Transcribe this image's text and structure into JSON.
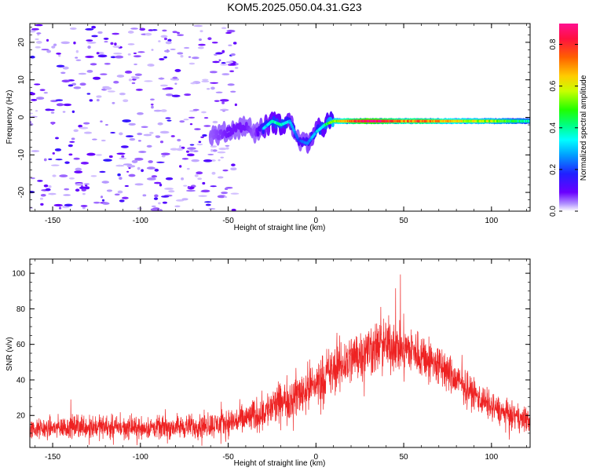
{
  "title": "KOM5.2025.050.04.31.G23",
  "colors": {
    "snr_line": "#ee2222",
    "frame": "#000000"
  },
  "chart_data": [
    {
      "type": "heatmap",
      "xlabel": "Height of straight line (km)",
      "ylabel": "Frequency (Hz)",
      "xlim": [
        -163,
        122
      ],
      "ylim": [
        -25,
        25
      ],
      "x_ticks": [
        -150,
        -100,
        -50,
        0,
        50,
        100
      ],
      "y_ticks": [
        -20,
        -10,
        0,
        10,
        20
      ],
      "colorbar": {
        "label": "Normalized spectral amplitude",
        "range": [
          0,
          0.9
        ],
        "ticks": [
          "0.0",
          "0.2",
          "0.4",
          "0.6",
          "0.8"
        ]
      },
      "ridge": {
        "description_x": [
          -60,
          -50,
          -40,
          -35,
          -30,
          -25,
          -20,
          -15,
          -10,
          -5,
          0,
          5,
          10,
          20,
          30,
          40,
          50,
          60,
          80,
          100,
          120
        ],
        "frequency_hz": [
          -5,
          -4,
          -2,
          -4,
          -3,
          -1,
          -2,
          -1,
          -6,
          -7,
          -4,
          -2,
          -1,
          -1,
          -1,
          -1,
          -1,
          -1,
          -1,
          -1,
          -1
        ],
        "amplitude": [
          0.1,
          0.15,
          0.15,
          0.1,
          0.3,
          0.35,
          0.4,
          0.3,
          0.2,
          0.25,
          0.3,
          0.4,
          0.55,
          0.75,
          0.9,
          0.8,
          0.7,
          0.75,
          0.6,
          0.55,
          0.4
        ]
      },
      "noise_region_x": [
        -163,
        -45
      ]
    },
    {
      "type": "line",
      "xlabel": "Height of straight line (km)",
      "ylabel": "SNR (v/v)",
      "xlim": [
        -163,
        122
      ],
      "ylim": [
        2,
        108
      ],
      "x_ticks": [
        -150,
        -100,
        -50,
        0,
        50,
        100
      ],
      "y_ticks": [
        20,
        40,
        60,
        80,
        100
      ],
      "envelope": {
        "x": [
          -163,
          -150,
          -130,
          -110,
          -90,
          -70,
          -55,
          -40,
          -30,
          -20,
          -10,
          0,
          10,
          20,
          30,
          40,
          50,
          60,
          70,
          80,
          90,
          100,
          110,
          122
        ],
        "mean": [
          12,
          13,
          14,
          13,
          13,
          14,
          15,
          18,
          22,
          27,
          32,
          38,
          45,
          52,
          57,
          60,
          58,
          54,
          48,
          40,
          32,
          25,
          20,
          17
        ],
        "spread": [
          8,
          9,
          10,
          9,
          9,
          10,
          11,
          13,
          15,
          17,
          19,
          20,
          21,
          22,
          22,
          22,
          21,
          19,
          17,
          15,
          13,
          12,
          11,
          10
        ]
      }
    }
  ]
}
